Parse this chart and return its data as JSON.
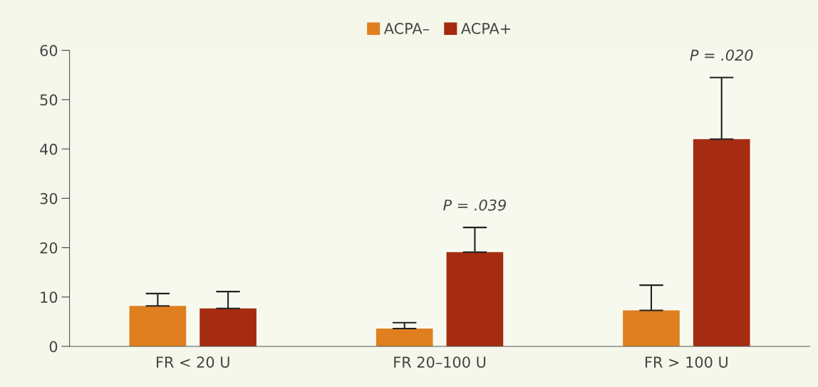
{
  "chart_data": {
    "type": "bar",
    "categories": [
      "FR < 20 U",
      "FR 20–100 U",
      "FR > 100 U"
    ],
    "series": [
      {
        "name": "ACPA–",
        "color": "#e07f1f",
        "values": [
          8.2,
          3.6,
          7.3
        ],
        "errors": [
          [
            8.2,
            10.7
          ],
          [
            3.6,
            4.8
          ],
          [
            7.3,
            12.4
          ]
        ]
      },
      {
        "name": "ACPA+",
        "color": "#a52c10",
        "values": [
          7.7,
          19.1,
          42.0
        ],
        "errors": [
          [
            7.7,
            11.1
          ],
          [
            19.1,
            24.1
          ],
          [
            42.0,
            54.5
          ]
        ]
      }
    ],
    "annotations": [
      "P = .039",
      "P = .020"
    ],
    "ylim": [
      0,
      60
    ],
    "yticks": [
      0,
      10,
      20,
      30,
      40,
      50,
      60
    ],
    "grid": false,
    "legend": "top"
  }
}
